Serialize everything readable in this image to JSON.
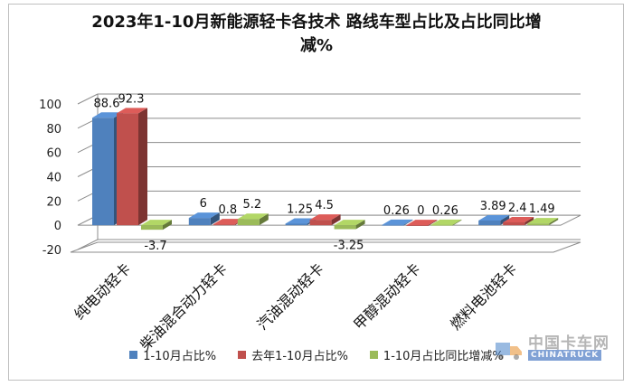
{
  "title": {
    "line1": "2023年1-10月新能源轻卡各技术 路线车型占比及占比同比增",
    "line2": "减%"
  },
  "watermark": {
    "text": "中国卡车网",
    "sub": "CHINATRUCK"
  },
  "chart_data": {
    "type": "bar",
    "style": "3d-clustered",
    "categories": [
      "纯电动轻卡",
      "柴油混合动力轻卡",
      "汽油混动轻卡",
      "甲醇混动轻卡",
      "燃料电池轻卡"
    ],
    "series": [
      {
        "name": "1-10月占比%",
        "color": "#4f81bd",
        "values": [
          88.6,
          6,
          1.25,
          0.26,
          3.89
        ],
        "labels": [
          "88.6",
          "6",
          "1.25",
          "0.26",
          "3.89"
        ]
      },
      {
        "name": "去年1-10月占比%",
        "color": "#c0504d",
        "values": [
          92.3,
          0.8,
          4.5,
          0,
          2.4
        ],
        "labels": [
          "92.3",
          "0.8",
          "4.5",
          "0",
          "2.4"
        ]
      },
      {
        "name": "1-10月占比同比增减%",
        "color": "#9bbb59",
        "values": [
          -3.7,
          5.2,
          -3.25,
          0.26,
          1.49
        ],
        "labels": [
          "-3.7",
          "5.2",
          "-3.25",
          "0.26",
          "1.49"
        ]
      }
    ],
    "yticks": [
      "-20",
      "0",
      "20",
      "40",
      "60",
      "80",
      "100"
    ],
    "ylim": [
      -20,
      100
    ],
    "grid": true,
    "legend_position": "bottom"
  }
}
